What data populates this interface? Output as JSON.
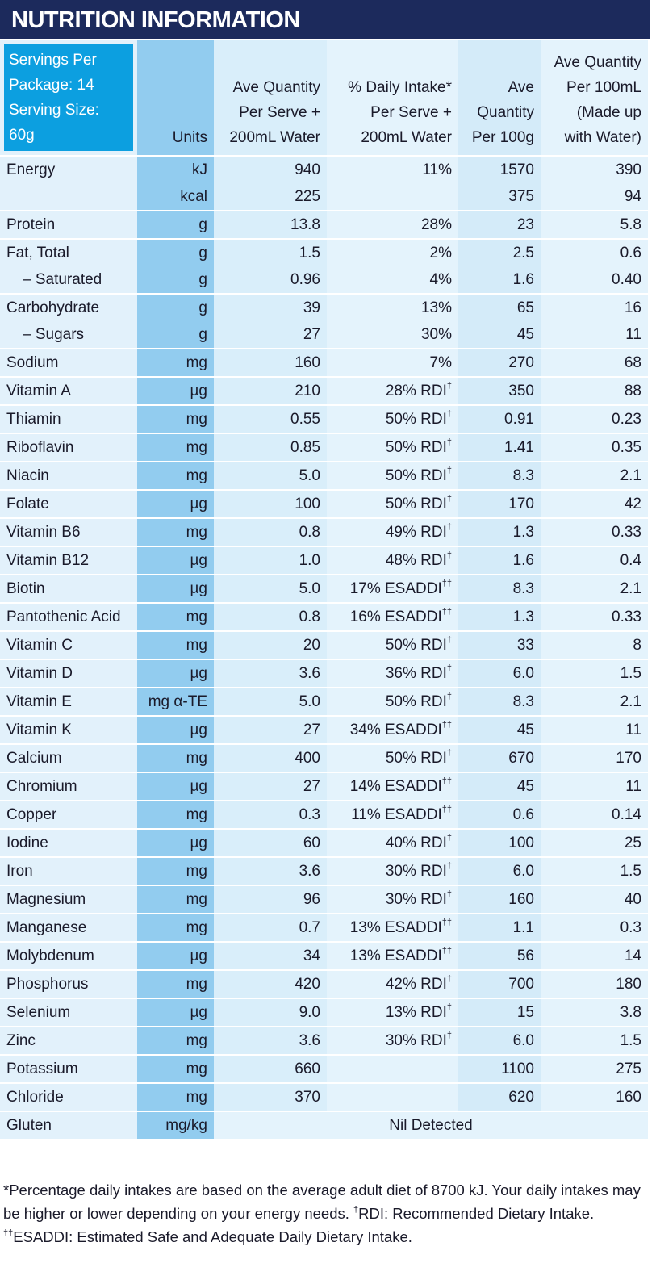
{
  "title": "NUTRITION INFORMATION",
  "servings": [
    "Servings Per Package: 14",
    "Serving Size: 60g"
  ],
  "columns": [
    "Units",
    "Ave Quantity Per Serve + 200mL Water",
    "% Daily Intake* Per Serve + 200mL Water",
    "Ave Quantity Per 100g",
    "Ave Quantity Per 100mL (Made up with Water)"
  ],
  "rows": [
    [
      [
        "Energy",
        "kJ",
        "940",
        "11%",
        "1570",
        "390"
      ],
      [
        null,
        "kcal",
        "225",
        null,
        "375",
        "94"
      ]
    ],
    [
      [
        "Protein",
        "g",
        "13.8",
        "28%",
        "23",
        "5.8"
      ]
    ],
    [
      [
        "Fat, Total",
        "g",
        "1.5",
        "2%",
        "2.5",
        "0.6"
      ],
      [
        "– Saturated",
        "g",
        "0.96",
        "4%",
        "1.6",
        "0.40"
      ]
    ],
    [
      [
        "Carbohydrate",
        "g",
        "39",
        "13%",
        "65",
        "16"
      ],
      [
        "– Sugars",
        "g",
        "27",
        "30%",
        "45",
        "11"
      ]
    ],
    [
      [
        "Sodium",
        "mg",
        "160",
        "7%",
        "270",
        "68"
      ]
    ],
    [
      [
        "Vitamin A",
        "µg",
        "210",
        "28% RDI†",
        "350",
        "88"
      ]
    ],
    [
      [
        "Thiamin",
        "mg",
        "0.55",
        "50% RDI†",
        "0.91",
        "0.23"
      ]
    ],
    [
      [
        "Riboflavin",
        "mg",
        "0.85",
        "50% RDI†",
        "1.41",
        "0.35"
      ]
    ],
    [
      [
        "Niacin",
        "mg",
        "5.0",
        "50% RDI†",
        "8.3",
        "2.1"
      ]
    ],
    [
      [
        "Folate",
        "µg",
        "100",
        "50% RDI†",
        "170",
        "42"
      ]
    ],
    [
      [
        "Vitamin B6",
        "mg",
        "0.8",
        "49% RDI†",
        "1.3",
        "0.33"
      ]
    ],
    [
      [
        "Vitamin B12",
        "µg",
        "1.0",
        "48% RDI†",
        "1.6",
        "0.4"
      ]
    ],
    [
      [
        "Biotin",
        "µg",
        "5.0",
        "17% ESADDI††",
        "8.3",
        "2.1"
      ]
    ],
    [
      [
        "Pantothenic Acid",
        "mg",
        "0.8",
        "16% ESADDI††",
        "1.3",
        "0.33"
      ]
    ],
    [
      [
        "Vitamin C",
        "mg",
        "20",
        "50% RDI†",
        "33",
        "8"
      ]
    ],
    [
      [
        "Vitamin D",
        "µg",
        "3.6",
        "36% RDI†",
        "6.0",
        "1.5"
      ]
    ],
    [
      [
        "Vitamin E",
        "mg α-TE",
        "5.0",
        "50% RDI†",
        "8.3",
        "2.1"
      ]
    ],
    [
      [
        "Vitamin K",
        "µg",
        "27",
        "34% ESADDI††",
        "45",
        "11"
      ]
    ],
    [
      [
        "Calcium",
        "mg",
        "400",
        "50% RDI†",
        "670",
        "170"
      ]
    ],
    [
      [
        "Chromium",
        "µg",
        "27",
        "14% ESADDI††",
        "45",
        "11"
      ]
    ],
    [
      [
        "Copper",
        "mg",
        "0.3",
        "11% ESADDI††",
        "0.6",
        "0.14"
      ]
    ],
    [
      [
        "Iodine",
        "µg",
        "60",
        "40% RDI†",
        "100",
        "25"
      ]
    ],
    [
      [
        "Iron",
        "mg",
        "3.6",
        "30% RDI†",
        "6.0",
        "1.5"
      ]
    ],
    [
      [
        "Magnesium",
        "mg",
        "96",
        "30% RDI†",
        "160",
        "40"
      ]
    ],
    [
      [
        "Manganese",
        "mg",
        "0.7",
        "13% ESADDI††",
        "1.1",
        "0.3"
      ]
    ],
    [
      [
        "Molybdenum",
        "µg",
        "34",
        "13% ESADDI††",
        "56",
        "14"
      ]
    ],
    [
      [
        "Phosphorus",
        "mg",
        "420",
        "42% RDI†",
        "700",
        "180"
      ]
    ],
    [
      [
        "Selenium",
        "µg",
        "9.0",
        "13% RDI†",
        "15",
        "3.8"
      ]
    ],
    [
      [
        "Zinc",
        "mg",
        "3.6",
        "30% RDI†",
        "6.0",
        "1.5"
      ]
    ],
    [
      [
        "Potassium",
        "mg",
        "660",
        null,
        "1100",
        "275"
      ]
    ],
    [
      [
        "Chloride",
        "mg",
        "370",
        null,
        "620",
        "160"
      ]
    ],
    [
      [
        "Gluten",
        "mg/kg",
        "Nil Detected"
      ]
    ]
  ],
  "footnote": "*Percentage daily intakes are based on the average adult diet of 8700 kJ. Your daily intakes may be higher or lower depending on your energy needs. †RDI: Recommended Dietary Intake. ††ESADDI: Estimated Safe and Adequate Daily Dietary Intake."
}
